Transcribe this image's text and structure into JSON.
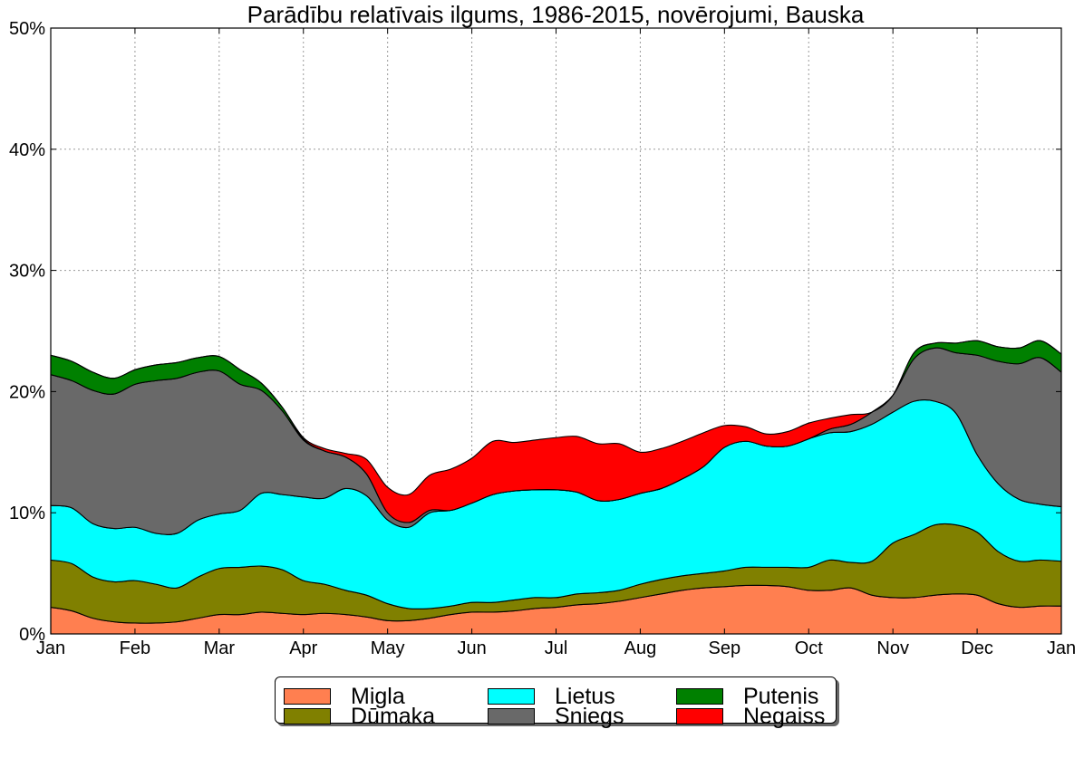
{
  "chart_data": {
    "type": "area",
    "stacked": true,
    "title": "Parādību relatīvais ilgums, 1986-2015, novērojumi, Bauska",
    "xlabel": "",
    "ylabel": "",
    "ylim": [
      0,
      50
    ],
    "yticks": [
      0,
      10,
      20,
      30,
      40,
      50
    ],
    "ytick_labels": [
      "0%",
      "10%",
      "20%",
      "30%",
      "40%",
      "50%"
    ],
    "xlim": [
      0,
      12
    ],
    "xticks": [
      0,
      1,
      2,
      3,
      4,
      5,
      6,
      7,
      8,
      9,
      10,
      11,
      12
    ],
    "xtick_labels": [
      "Jan",
      "Feb",
      "Mar",
      "Apr",
      "May",
      "Jun",
      "Jul",
      "Aug",
      "Sep",
      "Oct",
      "Nov",
      "Dec",
      "Jan"
    ],
    "grid": true,
    "legend_position": "bottom-center",
    "x": [
      0,
      0.25,
      0.5,
      0.75,
      1,
      1.25,
      1.5,
      1.75,
      2,
      2.25,
      2.5,
      2.75,
      3,
      3.25,
      3.5,
      3.75,
      4,
      4.25,
      4.5,
      4.75,
      5,
      5.25,
      5.5,
      5.75,
      6,
      6.25,
      6.5,
      6.75,
      7,
      7.25,
      7.5,
      7.75,
      8,
      8.25,
      8.5,
      8.75,
      9,
      9.25,
      9.5,
      9.75,
      10,
      10.25,
      10.5,
      10.75,
      11,
      11.25,
      11.5,
      11.75,
      12
    ],
    "series": [
      {
        "name": "Migla",
        "color": "#FF7F50",
        "values": [
          2.2,
          1.9,
          1.3,
          1.0,
          0.9,
          0.9,
          1.0,
          1.3,
          1.6,
          1.6,
          1.8,
          1.7,
          1.6,
          1.7,
          1.6,
          1.4,
          1.1,
          1.1,
          1.3,
          1.6,
          1.8,
          1.8,
          1.9,
          2.1,
          2.2,
          2.4,
          2.5,
          2.7,
          3.0,
          3.3,
          3.6,
          3.8,
          3.9,
          4.0,
          4.0,
          3.9,
          3.6,
          3.6,
          3.8,
          3.2,
          3.0,
          3.0,
          3.2,
          3.3,
          3.2,
          2.5,
          2.2,
          2.3,
          2.3
        ]
      },
      {
        "name": "Dūmaka",
        "color": "#808000",
        "values": [
          3.9,
          3.9,
          3.4,
          3.3,
          3.5,
          3.2,
          2.8,
          3.4,
          3.8,
          3.9,
          3.8,
          3.6,
          2.8,
          2.4,
          2.0,
          1.8,
          1.4,
          1.0,
          0.8,
          0.7,
          0.8,
          0.8,
          0.9,
          0.9,
          0.8,
          0.9,
          0.9,
          0.9,
          1.1,
          1.2,
          1.2,
          1.2,
          1.3,
          1.5,
          1.5,
          1.6,
          1.9,
          2.5,
          2.1,
          2.8,
          4.5,
          5.2,
          5.8,
          5.7,
          5.2,
          4.3,
          3.8,
          3.8,
          3.7
        ]
      },
      {
        "name": "Lietus",
        "color": "#00FFFF",
        "values": [
          4.5,
          4.6,
          4.4,
          4.4,
          4.4,
          4.2,
          4.5,
          4.7,
          4.5,
          4.7,
          6.0,
          6.2,
          6.9,
          7.1,
          8.4,
          8.2,
          6.9,
          6.7,
          7.9,
          7.9,
          8.2,
          8.9,
          9.0,
          8.9,
          8.9,
          8.4,
          7.6,
          7.5,
          7.5,
          7.5,
          8.0,
          8.8,
          10.2,
          10.4,
          10.0,
          10.0,
          10.6,
          10.5,
          10.8,
          11.3,
          10.8,
          11.0,
          10.2,
          9.2,
          6.4,
          5.6,
          5.1,
          4.6,
          4.5
        ]
      },
      {
        "name": "Sniegs",
        "color": "#696969",
        "values": [
          10.8,
          10.5,
          11.0,
          11.1,
          11.8,
          12.6,
          12.8,
          12.2,
          11.8,
          10.4,
          8.5,
          6.9,
          4.7,
          3.9,
          2.6,
          1.8,
          0.6,
          0.4,
          0.2,
          0,
          0,
          0,
          0,
          0,
          0,
          0,
          0,
          0,
          0,
          0,
          0,
          0,
          0,
          0,
          0,
          0,
          0,
          0.3,
          0.6,
          1.0,
          1.4,
          3.5,
          4.4,
          5.0,
          8.2,
          10.1,
          11.2,
          12.1,
          11.1
        ]
      },
      {
        "name": "Putenis",
        "color": "#008000",
        "values": [
          1.6,
          1.6,
          1.5,
          1.3,
          1.2,
          1.3,
          1.3,
          1.2,
          1.2,
          1.2,
          0.6,
          0.3,
          0.1,
          0,
          0,
          0,
          0,
          0,
          0,
          0,
          0,
          0,
          0,
          0,
          0,
          0,
          0,
          0,
          0,
          0,
          0,
          0,
          0,
          0,
          0,
          0,
          0,
          0,
          0,
          0,
          0,
          0.5,
          0.4,
          0.8,
          1.2,
          1.2,
          1.3,
          1.4,
          1.5
        ]
      },
      {
        "name": "Negaiss",
        "color": "#FF0000",
        "values": [
          0,
          0,
          0,
          0,
          0,
          0,
          0,
          0,
          0,
          0,
          0,
          0,
          0.1,
          0.2,
          0.3,
          1.2,
          2.1,
          2.3,
          2.9,
          3.4,
          3.7,
          4.4,
          4.0,
          4.1,
          4.3,
          4.6,
          4.7,
          4.6,
          3.4,
          3.3,
          3.1,
          2.8,
          1.8,
          1.2,
          1.0,
          1.2,
          1.3,
          0.9,
          0.8,
          0,
          0,
          0,
          0,
          0,
          0,
          0,
          0,
          0,
          0
        ]
      }
    ]
  },
  "legend": {
    "items": [
      {
        "label": "Migla",
        "color": "#FF7F50"
      },
      {
        "label": "Dūmaka",
        "color": "#808000"
      },
      {
        "label": "Lietus",
        "color": "#00FFFF"
      },
      {
        "label": "Sniegs",
        "color": "#696969"
      },
      {
        "label": "Putenis",
        "color": "#008000"
      },
      {
        "label": "Negaiss",
        "color": "#FF0000"
      }
    ]
  }
}
